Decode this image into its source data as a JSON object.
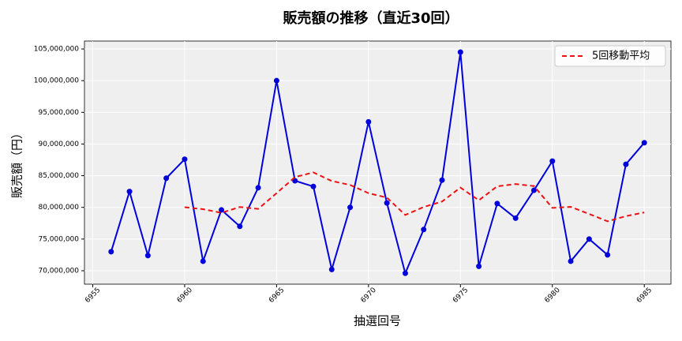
{
  "chart_data": {
    "type": "line",
    "title": "販売額の推移（直近30回）",
    "x_label": "抽選回号",
    "y_label": "販売額（円）",
    "x": [
      6956,
      6957,
      6958,
      6959,
      6960,
      6961,
      6962,
      6963,
      6964,
      6965,
      6966,
      6967,
      6968,
      6969,
      6970,
      6971,
      6972,
      6973,
      6974,
      6975,
      6976,
      6977,
      6978,
      6979,
      6980,
      6981,
      6982,
      6983,
      6984,
      6985
    ],
    "series": [
      {
        "color": "#0000dd",
        "style": "solid",
        "markers": true,
        "values": [
          73000000,
          82500000,
          72400000,
          84600000,
          87600000,
          71500000,
          79600000,
          77000000,
          83100000,
          100000000,
          84200000,
          83300000,
          70200000,
          80000000,
          93500000,
          80700000,
          69600000,
          76500000,
          84300000,
          104500000,
          70700000,
          80600000,
          78300000,
          82700000,
          87300000,
          71500000,
          75000000,
          72500000,
          86800000,
          90200000
        ]
      },
      {
        "name": "5回移動平均",
        "color": "#ee1111",
        "style": "dashed",
        "markers": false,
        "values": [
          null,
          null,
          null,
          null,
          80020000,
          79720000,
          79140000,
          80060000,
          79760000,
          82240000,
          84780000,
          85520000,
          84160000,
          83540000,
          82240000,
          81540000,
          78800000,
          80060000,
          80920000,
          83120000,
          81120000,
          83320000,
          83680000,
          83360000,
          79920000,
          80080000,
          78960000,
          77800000,
          78620000,
          79200000
        ]
      }
    ],
    "xlim": [
      6954.55,
      6986.45
    ],
    "ylim": [
      67880000,
      106250000
    ],
    "xticks": [
      6955,
      6960,
      6965,
      6970,
      6975,
      6980,
      6985
    ],
    "yticks": [
      {
        "value": 70000000,
        "label": "70,000,000"
      },
      {
        "value": 75000000,
        "label": "75,000,000"
      },
      {
        "value": 80000000,
        "label": "80,000,000"
      },
      {
        "value": 85000000,
        "label": "85,000,000"
      },
      {
        "value": 90000000,
        "label": "90,000,000"
      },
      {
        "value": 95000000,
        "label": "95,000,000"
      },
      {
        "value": 100000000,
        "label": "100,000,000"
      },
      {
        "value": 105000000,
        "label": "105,000,000"
      }
    ],
    "grid": true,
    "legend": "upper-right"
  }
}
